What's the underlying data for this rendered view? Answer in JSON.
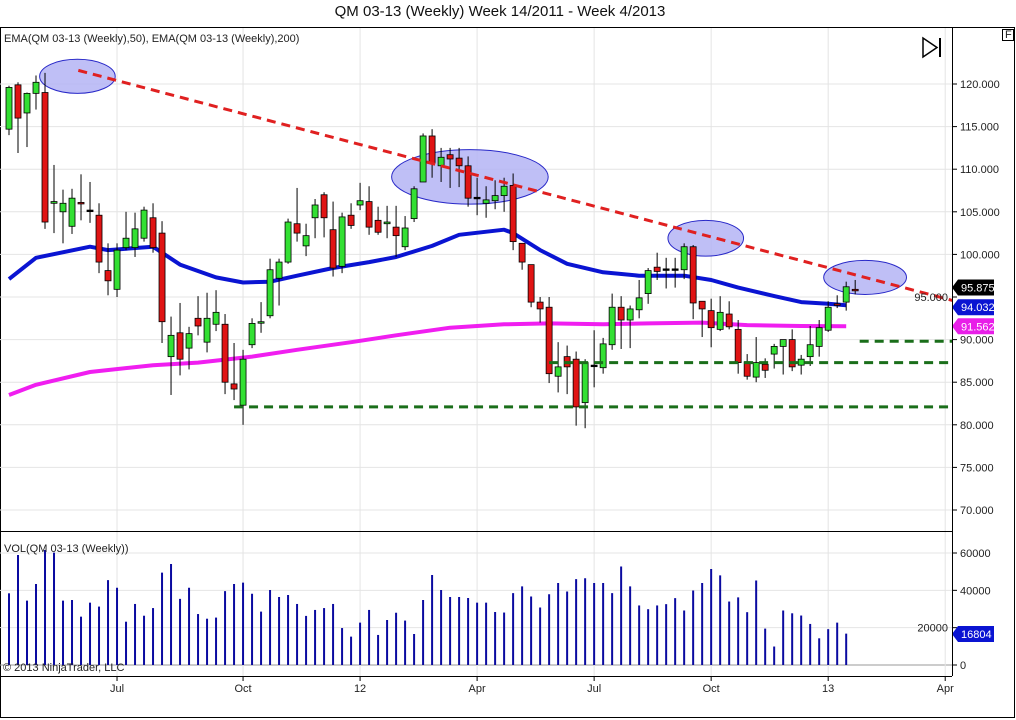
{
  "title": "QM 03-13 (Weekly)  Week 14/2011 - Week 4/2013",
  "price_panel_label": "EMA(QM 03-13 (Weekly),50), EMA(QM 03-13 (Weekly),200)",
  "volume_panel_label": "VOL(QM 03-13 (Weekly))",
  "copyright": "© 2013 NinjaTrader, LLC",
  "f_button": "F",
  "colors": {
    "up": "#33e033",
    "down": "#e01414",
    "ema50": "#0a14d2",
    "ema200": "#f01ef0",
    "trend": "#e02020",
    "support": "#1a6e1a",
    "volume": "#0a0aa0",
    "ellipse_fill": "#b4b4f5",
    "ellipse_stroke": "#2828c8"
  },
  "chart_data": {
    "type": "candlestick",
    "title": "QM 03-13 (Weekly)  Week 14/2011 - Week 4/2013",
    "price_axis": {
      "ylim": [
        68,
        122
      ],
      "ticks": [
        "120.000",
        "115.000",
        "110.000",
        "105.000",
        "100.000",
        "95.000",
        "90.000",
        "85.000",
        "80.000",
        "75.000",
        "70.000"
      ],
      "tick_values": [
        120,
        115,
        110,
        105,
        100,
        95,
        90,
        85,
        80,
        75,
        70
      ]
    },
    "volume_axis": {
      "ylim": [
        0,
        60000
      ],
      "ticks": [
        "0",
        "20000",
        "40000",
        "60000"
      ],
      "tick_values": [
        0,
        20000,
        40000,
        60000
      ]
    },
    "x_ticks": [
      {
        "label": "Jul",
        "week": 12
      },
      {
        "label": "Oct",
        "week": 26
      },
      {
        "label": "12",
        "week": 39
      },
      {
        "label": "Apr",
        "week": 52
      },
      {
        "label": "Jul",
        "week": 65
      },
      {
        "label": "Oct",
        "week": 78
      },
      {
        "label": "13",
        "week": 91
      },
      {
        "label": "Apr",
        "week": 104
      }
    ],
    "candles_ohlc": [
      [
        114.7,
        119.8,
        114.0,
        119.6
      ],
      [
        119.9,
        120.2,
        111.9,
        116.0
      ],
      [
        116.6,
        119.0,
        112.6,
        118.9
      ],
      [
        118.9,
        121.0,
        117.0,
        120.2
      ],
      [
        119.0,
        121.3,
        103.0,
        103.8
      ],
      [
        106.0,
        110.5,
        102.5,
        106.2
      ],
      [
        105.0,
        107.6,
        101.3,
        106.0
      ],
      [
        103.3,
        107.7,
        102.4,
        106.6
      ],
      [
        106.1,
        109.4,
        104.0,
        106.0
      ],
      [
        105.2,
        108.5,
        103.7,
        105.2
      ],
      [
        104.6,
        106.0,
        97.8,
        99.1
      ],
      [
        98.1,
        101.3,
        95.2,
        96.9
      ],
      [
        95.9,
        101.3,
        95.0,
        100.5
      ],
      [
        100.8,
        105.0,
        100.5,
        101.9
      ],
      [
        100.8,
        104.9,
        99.7,
        103.0
      ],
      [
        101.9,
        105.6,
        101.5,
        105.2
      ],
      [
        104.3,
        106.0,
        100.2,
        100.8
      ],
      [
        102.5,
        103.9,
        89.6,
        92.1
      ],
      [
        88.0,
        92.7,
        83.5,
        90.5
      ],
      [
        90.8,
        94.3,
        85.8,
        87.7
      ],
      [
        89.0,
        91.5,
        86.5,
        90.7
      ],
      [
        92.5,
        95.1,
        90.5,
        91.6
      ],
      [
        89.7,
        95.5,
        88.5,
        92.5
      ],
      [
        91.8,
        95.8,
        91.0,
        93.2
      ],
      [
        91.8,
        93.0,
        83.6,
        85.0
      ],
      [
        84.8,
        89.6,
        82.9,
        84.2
      ],
      [
        82.3,
        88.8,
        80.0,
        87.7
      ],
      [
        89.4,
        92.5,
        89.0,
        91.9
      ],
      [
        92.0,
        94.4,
        90.8,
        92.1
      ],
      [
        92.8,
        99.5,
        92.5,
        98.2
      ],
      [
        97.2,
        99.5,
        94.0,
        99.1
      ],
      [
        99.1,
        104.2,
        98.9,
        103.8
      ],
      [
        103.6,
        107.8,
        101.5,
        102.5
      ],
      [
        101.0,
        103.6,
        99.8,
        102.2
      ],
      [
        104.3,
        106.5,
        101.9,
        105.8
      ],
      [
        107.0,
        107.3,
        102.0,
        104.3
      ],
      [
        102.9,
        106.2,
        97.4,
        98.4
      ],
      [
        98.6,
        104.9,
        97.8,
        104.4
      ],
      [
        104.6,
        106.0,
        103.0,
        103.4
      ],
      [
        105.8,
        108.4,
        105.2,
        106.3
      ],
      [
        106.2,
        108.0,
        102.3,
        103.2
      ],
      [
        104.0,
        105.6,
        102.3,
        102.6
      ],
      [
        103.6,
        105.7,
        101.9,
        103.8
      ],
      [
        103.2,
        105.7,
        99.7,
        102.2
      ],
      [
        100.9,
        104.5,
        100.5,
        103.1
      ],
      [
        104.2,
        108.0,
        103.8,
        107.7
      ],
      [
        108.5,
        114.2,
        108.5,
        113.9
      ],
      [
        113.9,
        114.7,
        109.0,
        110.7
      ],
      [
        110.4,
        112.5,
        108.5,
        111.4
      ],
      [
        111.7,
        112.5,
        107.8,
        111.2
      ],
      [
        111.3,
        112.5,
        107.9,
        110.4
      ],
      [
        110.4,
        111.5,
        105.6,
        106.6
      ],
      [
        106.7,
        109.0,
        104.6,
        106.7
      ],
      [
        106.0,
        108.0,
        104.3,
        106.4
      ],
      [
        106.3,
        108.7,
        105.3,
        106.9
      ],
      [
        106.9,
        109.0,
        105.0,
        108.0
      ],
      [
        108.1,
        109.5,
        100.5,
        101.5
      ],
      [
        101.3,
        101.3,
        98.2,
        99.1
      ],
      [
        98.8,
        98.8,
        93.8,
        94.4
      ],
      [
        94.4,
        95.0,
        92.0,
        93.6
      ],
      [
        93.8,
        95.0,
        84.9,
        86.0
      ],
      [
        85.7,
        89.7,
        83.8,
        86.8
      ],
      [
        88.0,
        89.3,
        83.6,
        86.8
      ],
      [
        87.7,
        88.6,
        79.9,
        82.1
      ],
      [
        82.6,
        87.7,
        79.6,
        87.3
      ],
      [
        87.0,
        91.1,
        84.4,
        87.0
      ],
      [
        86.7,
        90.2,
        86.0,
        89.5
      ],
      [
        89.4,
        95.4,
        88.8,
        93.8
      ],
      [
        93.8,
        95.1,
        88.9,
        92.3
      ],
      [
        92.3,
        94.0,
        89.0,
        93.6
      ],
      [
        93.5,
        97.0,
        92.5,
        94.9
      ],
      [
        95.4,
        98.4,
        94.2,
        98.1
      ],
      [
        98.5,
        100.2,
        97.0,
        98.0
      ],
      [
        98.3,
        99.6,
        96.0,
        98.3
      ],
      [
        98.3,
        99.6,
        96.1,
        98.3
      ],
      [
        98.2,
        101.3,
        97.1,
        100.9
      ],
      [
        100.9,
        101.1,
        92.4,
        94.3
      ],
      [
        94.5,
        94.5,
        90.3,
        93.6
      ],
      [
        93.4,
        94.8,
        89.1,
        91.4
      ],
      [
        91.2,
        95.1,
        91.0,
        93.2
      ],
      [
        93.0,
        94.5,
        91.2,
        91.5
      ],
      [
        91.2,
        92.3,
        86.0,
        87.3
      ],
      [
        87.4,
        88.3,
        85.3,
        85.7
      ],
      [
        85.6,
        90.3,
        85.0,
        87.3
      ],
      [
        87.1,
        87.8,
        85.5,
        86.4
      ],
      [
        88.3,
        89.5,
        86.6,
        89.2
      ],
      [
        89.2,
        90.0,
        85.9,
        90.0
      ],
      [
        90.0,
        91.2,
        86.3,
        86.8
      ],
      [
        87.0,
        88.2,
        85.9,
        87.7
      ],
      [
        88.0,
        91.6,
        86.9,
        89.4
      ],
      [
        89.2,
        92.3,
        88.0,
        91.4
      ],
      [
        91.1,
        94.5,
        90.9,
        93.8
      ],
      [
        94.2,
        95.2,
        93.7,
        94.1
      ],
      [
        94.4,
        96.8,
        93.4,
        96.2
      ],
      [
        95.9,
        97.0,
        95.3,
        95.875
      ]
    ],
    "volume": [
      38400,
      58900,
      34500,
      43400,
      61600,
      60200,
      34500,
      34800,
      25900,
      33400,
      31300,
      45500,
      41400,
      23200,
      32700,
      26400,
      30500,
      49500,
      54100,
      35400,
      41400,
      27300,
      24800,
      25400,
      39600,
      43400,
      44100,
      38200,
      28600,
      40200,
      36400,
      37500,
      32700,
      26300,
      29500,
      30500,
      32700,
      19800,
      15200,
      22700,
      29500,
      16100,
      24100,
      28000,
      23800,
      16600,
      34800,
      48200,
      40200,
      36400,
      36400,
      35900,
      33400,
      33400,
      28400,
      28100,
      38500,
      42100,
      36700,
      30800,
      37900,
      43900,
      39400,
      46000,
      46500,
      43900,
      43900,
      38500,
      52800,
      42100,
      31900,
      29900,
      31900,
      32600,
      35800,
      29200,
      39900,
      43900,
      51400,
      48000,
      34000,
      36200,
      28300,
      45300,
      19500,
      9900,
      29200,
      27700,
      26500,
      22000,
      14300,
      19200,
      22700,
      16804
    ],
    "ema50_points": [
      [
        0,
        97.1
      ],
      [
        3,
        99.6
      ],
      [
        9,
        100.9
      ],
      [
        11,
        100.5
      ],
      [
        16,
        100.9
      ],
      [
        19,
        98.8
      ],
      [
        23,
        97.3
      ],
      [
        26,
        96.7
      ],
      [
        29,
        96.8
      ],
      [
        32,
        97.5
      ],
      [
        36,
        98.4
      ],
      [
        40,
        99.1
      ],
      [
        43,
        99.7
      ],
      [
        47,
        101.0
      ],
      [
        50,
        102.3
      ],
      [
        55,
        102.9
      ],
      [
        56,
        102.5
      ],
      [
        59,
        100.5
      ],
      [
        62,
        98.9
      ],
      [
        66,
        97.9
      ],
      [
        70,
        97.5
      ],
      [
        75,
        97.5
      ],
      [
        78,
        97.0
      ],
      [
        81,
        96.1
      ],
      [
        85,
        95.1
      ],
      [
        88,
        94.4
      ],
      [
        91,
        94.2
      ],
      [
        93,
        94.032
      ]
    ],
    "ema200_points": [
      [
        0,
        83.5
      ],
      [
        3,
        84.7
      ],
      [
        9,
        86.2
      ],
      [
        16,
        87.0
      ],
      [
        21,
        87.3
      ],
      [
        27,
        88.0
      ],
      [
        32,
        88.8
      ],
      [
        38,
        89.7
      ],
      [
        43,
        90.5
      ],
      [
        49,
        91.4
      ],
      [
        55,
        91.8
      ],
      [
        60,
        91.9
      ],
      [
        66,
        91.8
      ],
      [
        71,
        91.9
      ],
      [
        77,
        92.0
      ],
      [
        82,
        91.7
      ],
      [
        88,
        91.6
      ],
      [
        93,
        91.562
      ]
    ],
    "last_price_label": "95.875",
    "ema50_label": "94.032",
    "ema200_label": "91.562",
    "last_volume_label": "16804",
    "trendline": {
      "from": [
        7.7,
        121.6
      ],
      "to": [
        104.8,
        94.6
      ]
    },
    "support_lines": [
      {
        "from": 25,
        "to": 104.8,
        "price": 82.1
      },
      {
        "from": 60,
        "to": 104.8,
        "price": 87.3
      },
      {
        "from": 94.5,
        "to": 104.8,
        "price": 89.8
      }
    ],
    "ellipses": [
      {
        "week": 7.6,
        "price": 120.9,
        "rw": 4.2,
        "rp": 2.0
      },
      {
        "week": 51.2,
        "price": 109.1,
        "rw": 8.7,
        "rp": 3.2
      },
      {
        "week": 77.4,
        "price": 101.9,
        "rw": 4.2,
        "rp": 2.1
      },
      {
        "week": 95.1,
        "price": 97.3,
        "rw": 4.6,
        "rp": 2.0
      }
    ]
  }
}
